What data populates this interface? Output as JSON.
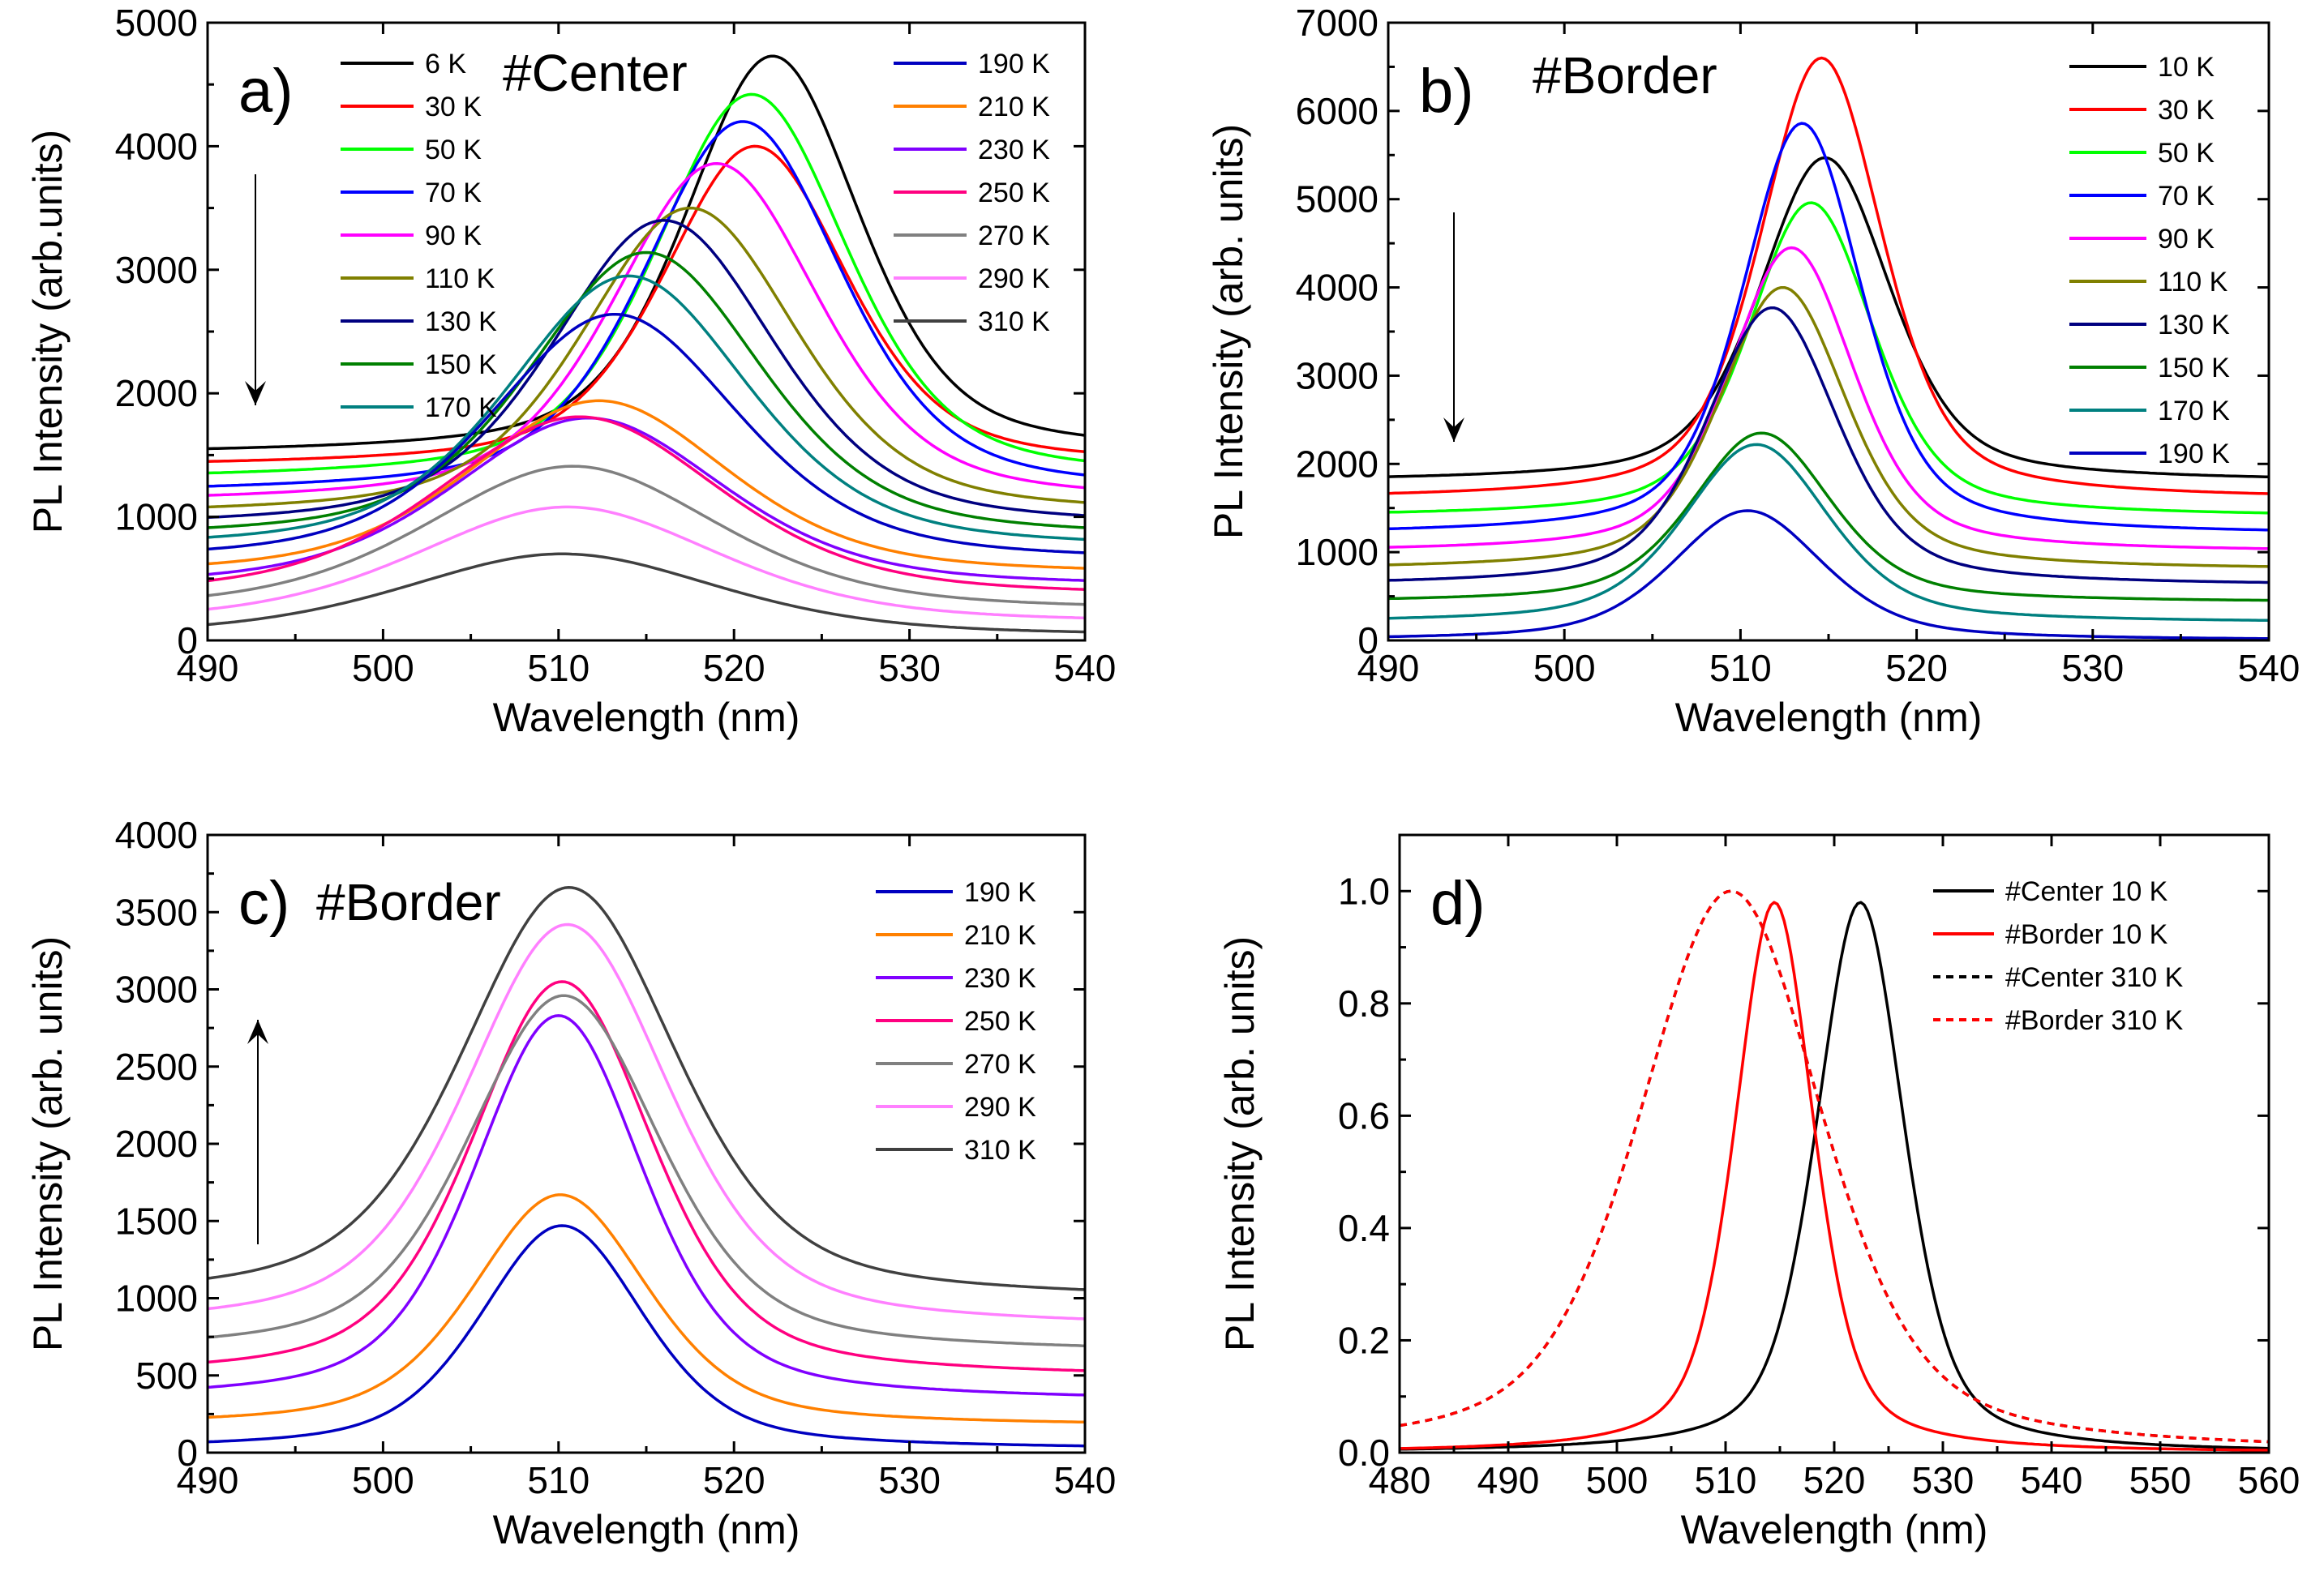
{
  "chart_data": [
    {
      "id": "a",
      "type": "line",
      "panel_label": "a)",
      "tag": "#Center",
      "xlabel": "Wavelength (nm)",
      "ylabel": "PL Intensity (arb.units)",
      "xlim": [
        490,
        540
      ],
      "ylim": [
        0,
        5000
      ],
      "xticks": [
        490,
        500,
        510,
        520,
        530,
        540
      ],
      "yticks": [
        0,
        1000,
        2000,
        3000,
        4000,
        5000
      ],
      "arrow": "down",
      "series": [
        {
          "name": "6 K",
          "color": "#000000",
          "peak_nm": 522.2,
          "amplitude": 3230,
          "width_nm": 6.2,
          "baseline": 1500
        },
        {
          "name": "30 K",
          "color": "#ff0000",
          "peak_nm": 521.2,
          "amplitude": 2600,
          "width_nm": 6.5,
          "baseline": 1400
        },
        {
          "name": "50 K",
          "color": "#00ff00",
          "peak_nm": 521.0,
          "amplitude": 3130,
          "width_nm": 6.8,
          "baseline": 1290
        },
        {
          "name": "70 K",
          "color": "#0000ff",
          "peak_nm": 520.5,
          "amplitude": 3020,
          "width_nm": 7.0,
          "baseline": 1180
        },
        {
          "name": "90 K",
          "color": "#ff00ff",
          "peak_nm": 519.0,
          "amplitude": 2760,
          "width_nm": 7.3,
          "baseline": 1100
        },
        {
          "name": "110 K",
          "color": "#808000",
          "peak_nm": 517.5,
          "amplitude": 2500,
          "width_nm": 7.6,
          "baseline": 1000
        },
        {
          "name": "130 K",
          "color": "#000080",
          "peak_nm": 516.0,
          "amplitude": 2500,
          "width_nm": 7.9,
          "baseline": 900
        },
        {
          "name": "150 K",
          "color": "#008000",
          "peak_nm": 515.0,
          "amplitude": 2330,
          "width_nm": 8.2,
          "baseline": 810
        },
        {
          "name": "170 K",
          "color": "#008080",
          "peak_nm": 514.0,
          "amplitude": 2230,
          "width_nm": 8.5,
          "baseline": 720
        },
        {
          "name": "190 K",
          "color": "#0000c0",
          "peak_nm": 513.2,
          "amplitude": 2020,
          "width_nm": 8.8,
          "baseline": 620
        },
        {
          "name": "210 K",
          "color": "#ff8000",
          "peak_nm": 512.3,
          "amplitude": 1420,
          "width_nm": 9.2,
          "baseline": 520
        },
        {
          "name": "230 K",
          "color": "#8000ff",
          "peak_nm": 511.7,
          "amplitude": 1380,
          "width_nm": 9.6,
          "baseline": 420
        },
        {
          "name": "250 K",
          "color": "#ff0080",
          "peak_nm": 511.2,
          "amplitude": 1470,
          "width_nm": 10.0,
          "baseline": 340
        },
        {
          "name": "270 K",
          "color": "#808080",
          "peak_nm": 510.8,
          "amplitude": 1180,
          "width_nm": 10.4,
          "baseline": 230
        },
        {
          "name": "290 K",
          "color": "#ff80ff",
          "peak_nm": 510.5,
          "amplitude": 950,
          "width_nm": 10.8,
          "baseline": 130
        },
        {
          "name": "310 K",
          "color": "#404040",
          "peak_nm": 510.2,
          "amplitude": 670,
          "width_nm": 11.2,
          "baseline": 30
        }
      ]
    },
    {
      "id": "b",
      "type": "line",
      "panel_label": "b)",
      "tag": "#Border",
      "xlabel": "Wavelength (nm)",
      "ylabel": "PL Intensity (arb. units)",
      "xlim": [
        490,
        540
      ],
      "ylim": [
        0,
        7000
      ],
      "xticks": [
        490,
        500,
        510,
        520,
        530,
        540
      ],
      "yticks": [
        0,
        1000,
        2000,
        3000,
        4000,
        5000,
        6000,
        7000
      ],
      "arrow": "down",
      "series": [
        {
          "name": "10 K",
          "color": "#000000",
          "peak_nm": 514.8,
          "amplitude": 3670,
          "width_nm": 4.6,
          "baseline": 1800
        },
        {
          "name": "30 K",
          "color": "#ff0000",
          "peak_nm": 514.6,
          "amplitude": 5000,
          "width_nm": 4.3,
          "baseline": 1600
        },
        {
          "name": "50 K",
          "color": "#00ff00",
          "peak_nm": 514.0,
          "amplitude": 3560,
          "width_nm": 4.4,
          "baseline": 1400
        },
        {
          "name": "70 K",
          "color": "#0000ff",
          "peak_nm": 513.5,
          "amplitude": 4660,
          "width_nm": 4.2,
          "baseline": 1200
        },
        {
          "name": "90 K",
          "color": "#ff00ff",
          "peak_nm": 512.9,
          "amplitude": 3450,
          "width_nm": 4.4,
          "baseline": 1000
        },
        {
          "name": "110 K",
          "color": "#808000",
          "peak_nm": 512.4,
          "amplitude": 3200,
          "width_nm": 4.5,
          "baseline": 800
        },
        {
          "name": "130 K",
          "color": "#000080",
          "peak_nm": 511.8,
          "amplitude": 3150,
          "width_nm": 4.6,
          "baseline": 620
        },
        {
          "name": "150 K",
          "color": "#008000",
          "peak_nm": 511.2,
          "amplitude": 1920,
          "width_nm": 4.9,
          "baseline": 430
        },
        {
          "name": "170 K",
          "color": "#008080",
          "peak_nm": 510.9,
          "amplitude": 2020,
          "width_nm": 5.1,
          "baseline": 200
        },
        {
          "name": "190 K",
          "color": "#0000c0",
          "peak_nm": 510.4,
          "amplitude": 1470,
          "width_nm": 5.3,
          "baseline": 0
        }
      ]
    },
    {
      "id": "c",
      "type": "line",
      "panel_label": "c)",
      "tag": "#Border",
      "xlabel": "Wavelength (nm)",
      "ylabel": "PL Intensity (arb. units)",
      "xlim": [
        490,
        540
      ],
      "ylim": [
        0,
        4000
      ],
      "xticks": [
        490,
        500,
        510,
        520,
        530,
        540
      ],
      "yticks": [
        0,
        500,
        1000,
        1500,
        2000,
        2500,
        3000,
        3500,
        4000
      ],
      "arrow": "up",
      "series": [
        {
          "name": "190 K",
          "color": "#0000c0",
          "peak_nm": 510.2,
          "amplitude": 1450,
          "width_nm": 5.8,
          "baseline": 20
        },
        {
          "name": "210 K",
          "color": "#ff8000",
          "peak_nm": 510.1,
          "amplitude": 1500,
          "width_nm": 6.2,
          "baseline": 170
        },
        {
          "name": "230 K",
          "color": "#8000ff",
          "peak_nm": 510.0,
          "amplitude": 2500,
          "width_nm": 6.0,
          "baseline": 330
        },
        {
          "name": "250 K",
          "color": "#ff0080",
          "peak_nm": 510.2,
          "amplitude": 2570,
          "width_nm": 6.4,
          "baseline": 480
        },
        {
          "name": "270 K",
          "color": "#808080",
          "peak_nm": 510.3,
          "amplitude": 2320,
          "width_nm": 6.8,
          "baseline": 640
        },
        {
          "name": "290 K",
          "color": "#ff80ff",
          "peak_nm": 510.5,
          "amplitude": 2620,
          "width_nm": 7.2,
          "baseline": 800
        },
        {
          "name": "310 K",
          "color": "#404040",
          "peak_nm": 510.6,
          "amplitude": 2680,
          "width_nm": 7.6,
          "baseline": 980
        }
      ]
    },
    {
      "id": "d",
      "type": "line",
      "panel_label": "d)",
      "tag": "",
      "xlabel": "Wavelength (nm)",
      "ylabel": "PL Intensity (arb. units)",
      "xlim": [
        480,
        560
      ],
      "ylim": [
        0,
        1.1
      ],
      "xticks": [
        480,
        490,
        500,
        510,
        520,
        530,
        540,
        550,
        560
      ],
      "yticks": [
        0.0,
        0.2,
        0.4,
        0.6,
        0.8,
        1.0
      ],
      "ytick_labels": [
        "0.0",
        "0.2",
        "0.4",
        "0.6",
        "0.8",
        "1.0"
      ],
      "arrow": "none",
      "series": [
        {
          "name": "#Center 10 K",
          "color": "#000000",
          "dashed": false,
          "peak_nm": 522.4,
          "amplitude": 0.98,
          "width_nm": 5.0,
          "baseline": 0
        },
        {
          "name": "#Border 10 K",
          "color": "#ff0000",
          "dashed": false,
          "peak_nm": 514.5,
          "amplitude": 0.98,
          "width_nm": 4.5,
          "baseline": 0
        },
        {
          "name": "#Center 310 K",
          "color": "#000000",
          "dashed": true,
          "peak_nm": 510.5,
          "amplitude": 1.0,
          "width_nm": 10.5,
          "baseline": 0
        },
        {
          "name": "#Border 310 K",
          "color": "#ff0000",
          "dashed": true,
          "peak_nm": 510.5,
          "amplitude": 1.0,
          "width_nm": 10.5,
          "baseline": 0
        }
      ]
    }
  ]
}
